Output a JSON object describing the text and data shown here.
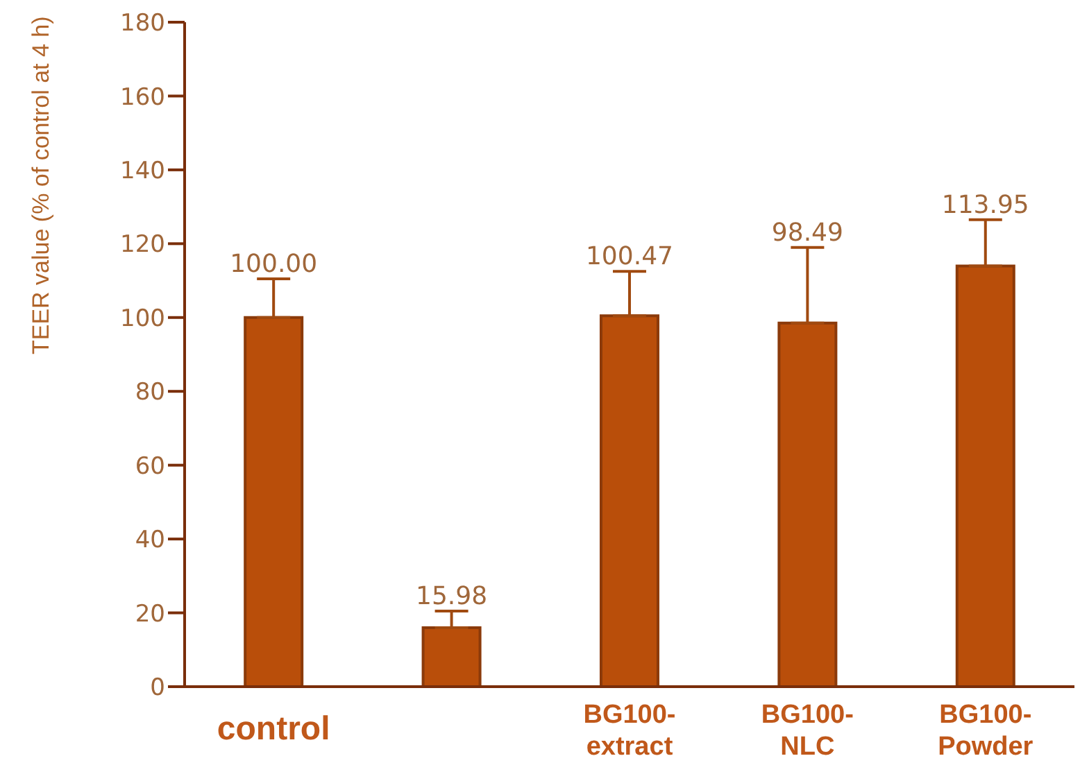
{
  "chart_data": {
    "type": "bar",
    "ylabel": "TEER value (% of control at 4 h)",
    "categories": [
      "control",
      null,
      "BG100-extract",
      "BG100-NLC",
      "BG100-Powder"
    ],
    "values": [
      100.0,
      15.98,
      100.47,
      98.49,
      113.95
    ],
    "value_labels": [
      "100.00",
      "15.98",
      "100.47",
      "98.49",
      "113.95"
    ],
    "errors": [
      [
        100.0,
        110.5
      ],
      [
        15.98,
        20.5
      ],
      [
        100.47,
        112.5
      ],
      [
        98.49,
        119
      ],
      [
        113.95,
        126.5
      ]
    ],
    "color": "#b94e0a",
    "ylim": [
      0,
      180
    ],
    "yticks": [
      0,
      20,
      40,
      60,
      80,
      100,
      120,
      140,
      160,
      180
    ],
    "grid": false,
    "legend": false
  }
}
